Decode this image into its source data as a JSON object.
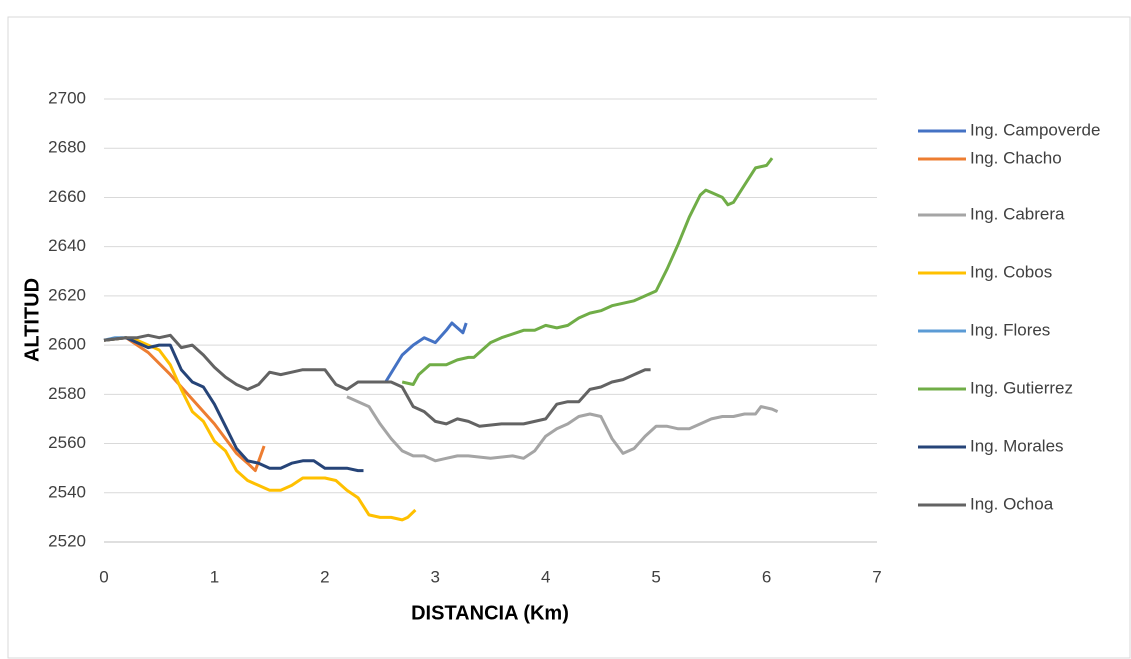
{
  "chart_data": {
    "type": "line",
    "xlabel": "DISTANCIA (Km)",
    "ylabel": "ALTITUD",
    "xlim": [
      0,
      7
    ],
    "xticks": [
      0,
      1,
      2,
      3,
      4,
      5,
      6,
      7
    ],
    "ylim": [
      2520,
      2700
    ],
    "yticks": [
      2520,
      2540,
      2560,
      2580,
      2600,
      2620,
      2640,
      2660,
      2680,
      2700
    ],
    "grid": true,
    "legend": "right",
    "series": [
      {
        "name": "Ing. Campoverde",
        "color": "#4472c4",
        "x": [
          2.55,
          2.7,
          2.8,
          2.9,
          3.0,
          3.1,
          3.15,
          3.2,
          3.25,
          3.28
        ],
        "values": [
          2585,
          2596,
          2600,
          2603,
          2601,
          2606,
          2609,
          2607,
          2605,
          2609
        ]
      },
      {
        "name": "Ing. Chacho",
        "color": "#ed7d31",
        "x": [
          0,
          0.2,
          0.4,
          0.6,
          0.8,
          1.0,
          1.2,
          1.3,
          1.37,
          1.45
        ],
        "values": [
          2602,
          2603,
          2597,
          2588,
          2578,
          2568,
          2556,
          2552,
          2549,
          2559
        ]
      },
      {
        "name": "Ing. Cabrera",
        "color": "#a5a5a5",
        "x": [
          2.2,
          2.4,
          2.5,
          2.6,
          2.7,
          2.8,
          2.9,
          3.0,
          3.1,
          3.2,
          3.3,
          3.5,
          3.7,
          3.8,
          3.9,
          4.0,
          4.1,
          4.2,
          4.3,
          4.4,
          4.5,
          4.6,
          4.7,
          4.8,
          4.9,
          5.0,
          5.1,
          5.2,
          5.3,
          5.4,
          5.5,
          5.6,
          5.7,
          5.8,
          5.9,
          5.95,
          6.05,
          6.1
        ],
        "values": [
          2579,
          2575,
          2568,
          2562,
          2557,
          2555,
          2555,
          2553,
          2554,
          2555,
          2555,
          2554,
          2555,
          2554,
          2557,
          2563,
          2566,
          2568,
          2571,
          2572,
          2571,
          2562,
          2556,
          2558,
          2563,
          2567,
          2567,
          2566,
          2566,
          2568,
          2570,
          2571,
          2571,
          2572,
          2572,
          2575,
          2574,
          2573
        ]
      },
      {
        "name": "Ing. Cobos",
        "color": "#ffc000",
        "x": [
          0,
          0.2,
          0.3,
          0.5,
          0.6,
          0.7,
          0.8,
          0.9,
          1.0,
          1.1,
          1.2,
          1.3,
          1.4,
          1.5,
          1.6,
          1.7,
          1.8,
          1.9,
          2.0,
          2.1,
          2.2,
          2.3,
          2.4,
          2.5,
          2.6,
          2.7,
          2.75,
          2.82
        ],
        "values": [
          2602,
          2603,
          2602,
          2598,
          2592,
          2582,
          2573,
          2569,
          2561,
          2557,
          2549,
          2545,
          2543,
          2541,
          2541,
          2543,
          2546,
          2546,
          2546,
          2545,
          2541,
          2538,
          2531,
          2530,
          2530,
          2529,
          2530,
          2533
        ]
      },
      {
        "name": "Ing. Flores",
        "color": "#5b9bd5",
        "x": [
          0,
          0.1,
          0.2
        ],
        "values": [
          2602,
          2603,
          2603
        ]
      },
      {
        "name": "Ing. Gutierrez",
        "color": "#70ad47",
        "x": [
          2.7,
          2.8,
          2.85,
          2.95,
          3.1,
          3.2,
          3.3,
          3.35,
          3.5,
          3.6,
          3.8,
          3.9,
          4.0,
          4.1,
          4.2,
          4.3,
          4.4,
          4.5,
          4.6,
          4.8,
          4.9,
          5.0,
          5.1,
          5.2,
          5.3,
          5.4,
          5.45,
          5.5,
          5.6,
          5.65,
          5.7,
          5.8,
          5.9,
          6.0,
          6.05
        ],
        "values": [
          2585,
          2584,
          2588,
          2592,
          2592,
          2594,
          2595,
          2595,
          2601,
          2603,
          2606,
          2606,
          2608,
          2607,
          2608,
          2611,
          2613,
          2614,
          2616,
          2618,
          2620,
          2622,
          2631,
          2641,
          2652,
          2661,
          2663,
          2662,
          2660,
          2657,
          2658,
          2665,
          2672,
          2673,
          2676
        ]
      },
      {
        "name": "Ing. Morales",
        "color": "#264478",
        "x": [
          0,
          0.2,
          0.3,
          0.4,
          0.5,
          0.6,
          0.7,
          0.8,
          0.9,
          1.0,
          1.1,
          1.2,
          1.3,
          1.4,
          1.5,
          1.6,
          1.7,
          1.8,
          1.9,
          2.0,
          2.1,
          2.2,
          2.3,
          2.35
        ],
        "values": [
          2602,
          2603,
          2601,
          2599,
          2600,
          2600,
          2590,
          2585,
          2583,
          2576,
          2567,
          2558,
          2553,
          2552,
          2550,
          2550,
          2552,
          2553,
          2553,
          2550,
          2550,
          2550,
          2549,
          2549
        ]
      },
      {
        "name": "Ing. Ochoa",
        "color": "#636363",
        "x": [
          0,
          0.2,
          0.3,
          0.4,
          0.5,
          0.6,
          0.7,
          0.8,
          0.9,
          1.0,
          1.1,
          1.2,
          1.3,
          1.4,
          1.5,
          1.6,
          1.7,
          1.8,
          1.9,
          2.0,
          2.1,
          2.2,
          2.3,
          2.4,
          2.6,
          2.7,
          2.8,
          2.9,
          3.0,
          3.1,
          3.2,
          3.3,
          3.4,
          3.6,
          3.8,
          3.9,
          4.0,
          4.1,
          4.2,
          4.3,
          4.4,
          4.5,
          4.6,
          4.7,
          4.8,
          4.9,
          4.95
        ],
        "values": [
          2602,
          2603,
          2603,
          2604,
          2603,
          2604,
          2599,
          2600,
          2596,
          2591,
          2587,
          2584,
          2582,
          2584,
          2589,
          2588,
          2589,
          2590,
          2590,
          2590,
          2584,
          2582,
          2585,
          2585,
          2585,
          2583,
          2575,
          2573,
          2569,
          2568,
          2570,
          2569,
          2567,
          2568,
          2568,
          2569,
          2570,
          2576,
          2577,
          2577,
          2582,
          2583,
          2585,
          2586,
          2588,
          2590,
          2590
        ]
      }
    ]
  }
}
